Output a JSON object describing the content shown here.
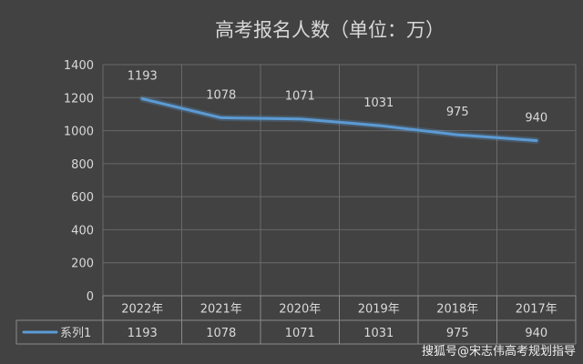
{
  "chart_data": {
    "type": "line",
    "title": "高考报名人数（单位：万）",
    "categories": [
      "2022年",
      "2021年",
      "2020年",
      "2019年",
      "2018年",
      "2017年"
    ],
    "series": [
      {
        "name": "系列1",
        "values": [
          1193,
          1078,
          1071,
          1031,
          975,
          940
        ]
      }
    ],
    "ylim": [
      0,
      1400
    ],
    "yticks": [
      0,
      200,
      400,
      600,
      800,
      1000,
      1200,
      1400
    ],
    "grid": true,
    "data_table": true,
    "line_color": "#5b9bd5",
    "background_color": "#424242",
    "text_color": "#d9d9d9",
    "grid_color": "#6a6a6a"
  },
  "watermark": "搜狐号@宋志伟高考规划指导"
}
